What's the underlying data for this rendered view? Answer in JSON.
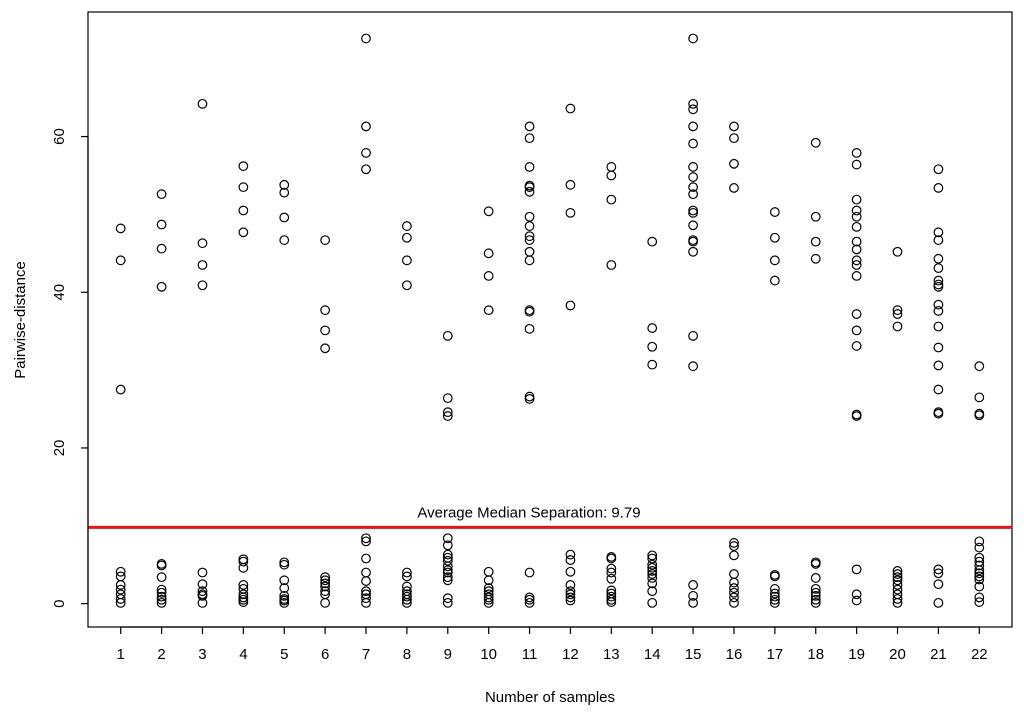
{
  "chart_data": {
    "type": "scatter",
    "xlabel": "Number of samples",
    "ylabel": "Pairwise-distance",
    "x_ticks": [
      1,
      2,
      3,
      4,
      5,
      6,
      7,
      8,
      9,
      10,
      11,
      12,
      13,
      14,
      15,
      16,
      17,
      18,
      19,
      20,
      21,
      22
    ],
    "y_ticks": [
      0,
      20,
      40,
      60
    ],
    "xlim": [
      0.2,
      22.8
    ],
    "ylim": [
      -3,
      76
    ],
    "grid": false,
    "reference_line": {
      "y": 9.79,
      "color": "#e8131b",
      "label": "Average Median Separation:  9.79"
    },
    "points": [
      [
        1,
        48.2
      ],
      [
        1,
        44.1
      ],
      [
        1,
        27.5
      ],
      [
        1,
        4.1
      ],
      [
        1,
        3.5
      ],
      [
        1,
        2.4
      ],
      [
        1,
        1.8
      ],
      [
        1,
        1.2
      ],
      [
        1,
        0.6
      ],
      [
        1,
        0.1
      ],
      [
        2,
        52.6
      ],
      [
        2,
        48.7
      ],
      [
        2,
        45.6
      ],
      [
        2,
        40.7
      ],
      [
        2,
        5.1
      ],
      [
        2,
        4.9
      ],
      [
        2,
        3.4
      ],
      [
        2,
        1.8
      ],
      [
        2,
        1.4
      ],
      [
        2,
        0.9
      ],
      [
        2,
        0.5
      ],
      [
        2,
        0.1
      ],
      [
        3,
        64.2
      ],
      [
        3,
        46.3
      ],
      [
        3,
        43.5
      ],
      [
        3,
        40.9
      ],
      [
        3,
        4.0
      ],
      [
        3,
        2.5
      ],
      [
        3,
        1.6
      ],
      [
        3,
        1.2
      ],
      [
        3,
        1.0
      ],
      [
        3,
        0.1
      ],
      [
        4,
        56.2
      ],
      [
        4,
        53.5
      ],
      [
        4,
        50.5
      ],
      [
        4,
        47.7
      ],
      [
        4,
        5.7
      ],
      [
        4,
        5.4
      ],
      [
        4,
        4.6
      ],
      [
        4,
        2.4
      ],
      [
        4,
        1.9
      ],
      [
        4,
        1.2
      ],
      [
        4,
        0.8
      ],
      [
        4,
        0.5
      ],
      [
        4,
        0.2
      ],
      [
        5,
        53.8
      ],
      [
        5,
        52.8
      ],
      [
        5,
        49.6
      ],
      [
        5,
        46.7
      ],
      [
        5,
        5.3
      ],
      [
        5,
        5.0
      ],
      [
        5,
        3.0
      ],
      [
        5,
        2.0
      ],
      [
        5,
        1.0
      ],
      [
        5,
        0.6
      ],
      [
        5,
        0.4
      ],
      [
        5,
        0.1
      ],
      [
        6,
        46.7
      ],
      [
        6,
        37.7
      ],
      [
        6,
        35.1
      ],
      [
        6,
        32.8
      ],
      [
        6,
        3.4
      ],
      [
        6,
        3.0
      ],
      [
        6,
        2.6
      ],
      [
        6,
        2.2
      ],
      [
        6,
        1.6
      ],
      [
        6,
        1.2
      ],
      [
        6,
        0.1
      ],
      [
        7,
        72.6
      ],
      [
        7,
        61.3
      ],
      [
        7,
        57.9
      ],
      [
        7,
        55.8
      ],
      [
        7,
        8.4
      ],
      [
        7,
        8.0
      ],
      [
        7,
        5.8
      ],
      [
        7,
        4.0
      ],
      [
        7,
        2.9
      ],
      [
        7,
        1.6
      ],
      [
        7,
        1.2
      ],
      [
        7,
        0.7
      ],
      [
        7,
        0.1
      ],
      [
        8,
        48.5
      ],
      [
        8,
        47.0
      ],
      [
        8,
        44.1
      ],
      [
        8,
        40.9
      ],
      [
        8,
        4.0
      ],
      [
        8,
        3.5
      ],
      [
        8,
        2.2
      ],
      [
        8,
        1.6
      ],
      [
        8,
        1.2
      ],
      [
        8,
        0.9
      ],
      [
        8,
        0.5
      ],
      [
        8,
        0.1
      ],
      [
        9,
        34.4
      ],
      [
        9,
        26.4
      ],
      [
        9,
        24.6
      ],
      [
        9,
        24.1
      ],
      [
        9,
        8.4
      ],
      [
        9,
        7.5
      ],
      [
        9,
        6.3
      ],
      [
        9,
        5.9
      ],
      [
        9,
        5.5
      ],
      [
        9,
        4.8
      ],
      [
        9,
        4.3
      ],
      [
        9,
        4.0
      ],
      [
        9,
        3.4
      ],
      [
        9,
        3.0
      ],
      [
        9,
        0.7
      ],
      [
        9,
        0.1
      ],
      [
        10,
        50.4
      ],
      [
        10,
        45.0
      ],
      [
        10,
        42.1
      ],
      [
        10,
        37.7
      ],
      [
        10,
        4.1
      ],
      [
        10,
        3.0
      ],
      [
        10,
        2.0
      ],
      [
        10,
        1.6
      ],
      [
        10,
        1.2
      ],
      [
        10,
        0.8
      ],
      [
        10,
        0.5
      ],
      [
        10,
        0.1
      ],
      [
        11,
        61.3
      ],
      [
        11,
        59.8
      ],
      [
        11,
        56.1
      ],
      [
        11,
        53.7
      ],
      [
        11,
        53.5
      ],
      [
        11,
        52.9
      ],
      [
        11,
        49.7
      ],
      [
        11,
        48.5
      ],
      [
        11,
        47.2
      ],
      [
        11,
        46.7
      ],
      [
        11,
        45.2
      ],
      [
        11,
        44.1
      ],
      [
        11,
        37.7
      ],
      [
        11,
        37.5
      ],
      [
        11,
        35.3
      ],
      [
        11,
        26.6
      ],
      [
        11,
        26.3
      ],
      [
        11,
        4.0
      ],
      [
        11,
        0.8
      ],
      [
        11,
        0.5
      ],
      [
        11,
        0.1
      ],
      [
        12,
        63.6
      ],
      [
        12,
        53.8
      ],
      [
        12,
        50.2
      ],
      [
        12,
        38.3
      ],
      [
        12,
        6.3
      ],
      [
        12,
        5.6
      ],
      [
        12,
        4.1
      ],
      [
        12,
        2.4
      ],
      [
        12,
        1.6
      ],
      [
        12,
        1.2
      ],
      [
        12,
        0.8
      ],
      [
        12,
        0.4
      ],
      [
        13,
        56.1
      ],
      [
        13,
        55.0
      ],
      [
        13,
        51.9
      ],
      [
        13,
        43.5
      ],
      [
        13,
        6.0
      ],
      [
        13,
        5.8
      ],
      [
        13,
        4.5
      ],
      [
        13,
        4.0
      ],
      [
        13,
        3.2
      ],
      [
        13,
        1.7
      ],
      [
        13,
        1.3
      ],
      [
        13,
        0.9
      ],
      [
        13,
        0.5
      ],
      [
        13,
        0.2
      ],
      [
        14,
        46.5
      ],
      [
        14,
        35.4
      ],
      [
        14,
        33.0
      ],
      [
        14,
        30.7
      ],
      [
        14,
        6.2
      ],
      [
        14,
        5.8
      ],
      [
        14,
        5.0
      ],
      [
        14,
        4.6
      ],
      [
        14,
        4.2
      ],
      [
        14,
        3.8
      ],
      [
        14,
        3.3
      ],
      [
        14,
        2.6
      ],
      [
        14,
        1.6
      ],
      [
        14,
        0.1
      ],
      [
        15,
        72.6
      ],
      [
        15,
        64.2
      ],
      [
        15,
        63.5
      ],
      [
        15,
        61.3
      ],
      [
        15,
        59.1
      ],
      [
        15,
        56.1
      ],
      [
        15,
        54.8
      ],
      [
        15,
        53.5
      ],
      [
        15,
        52.6
      ],
      [
        15,
        50.5
      ],
      [
        15,
        50.2
      ],
      [
        15,
        48.6
      ],
      [
        15,
        46.7
      ],
      [
        15,
        46.5
      ],
      [
        15,
        45.2
      ],
      [
        15,
        34.4
      ],
      [
        15,
        30.5
      ],
      [
        15,
        2.4
      ],
      [
        15,
        1.0
      ],
      [
        15,
        0.1
      ],
      [
        16,
        61.3
      ],
      [
        16,
        59.8
      ],
      [
        16,
        56.5
      ],
      [
        16,
        53.4
      ],
      [
        16,
        7.8
      ],
      [
        16,
        7.4
      ],
      [
        16,
        6.2
      ],
      [
        16,
        3.8
      ],
      [
        16,
        2.7
      ],
      [
        16,
        2.0
      ],
      [
        16,
        1.4
      ],
      [
        16,
        0.8
      ],
      [
        16,
        0.1
      ],
      [
        17,
        50.3
      ],
      [
        17,
        47.0
      ],
      [
        17,
        44.1
      ],
      [
        17,
        41.5
      ],
      [
        17,
        3.7
      ],
      [
        17,
        3.5
      ],
      [
        17,
        1.9
      ],
      [
        17,
        1.3
      ],
      [
        17,
        0.9
      ],
      [
        17,
        0.5
      ],
      [
        17,
        0.1
      ],
      [
        18,
        59.2
      ],
      [
        18,
        49.7
      ],
      [
        18,
        46.5
      ],
      [
        18,
        44.3
      ],
      [
        18,
        5.3
      ],
      [
        18,
        5.1
      ],
      [
        18,
        3.3
      ],
      [
        18,
        1.9
      ],
      [
        18,
        1.4
      ],
      [
        18,
        1.0
      ],
      [
        18,
        0.5
      ],
      [
        18,
        0.1
      ],
      [
        19,
        57.9
      ],
      [
        19,
        56.4
      ],
      [
        19,
        51.9
      ],
      [
        19,
        50.5
      ],
      [
        19,
        49.7
      ],
      [
        19,
        48.4
      ],
      [
        19,
        46.5
      ],
      [
        19,
        45.5
      ],
      [
        19,
        44.1
      ],
      [
        19,
        43.5
      ],
      [
        19,
        42.1
      ],
      [
        19,
        37.2
      ],
      [
        19,
        35.1
      ],
      [
        19,
        33.1
      ],
      [
        19,
        24.3
      ],
      [
        19,
        24.1
      ],
      [
        19,
        4.4
      ],
      [
        19,
        1.2
      ],
      [
        19,
        0.4
      ],
      [
        20,
        45.2
      ],
      [
        20,
        37.7
      ],
      [
        20,
        37.2
      ],
      [
        20,
        35.6
      ],
      [
        20,
        4.2
      ],
      [
        20,
        3.8
      ],
      [
        20,
        3.4
      ],
      [
        20,
        3.0
      ],
      [
        20,
        2.4
      ],
      [
        20,
        1.8
      ],
      [
        20,
        1.2
      ],
      [
        20,
        0.6
      ],
      [
        20,
        0.1
      ],
      [
        21,
        55.8
      ],
      [
        21,
        53.4
      ],
      [
        21,
        47.7
      ],
      [
        21,
        46.7
      ],
      [
        21,
        44.3
      ],
      [
        21,
        43.1
      ],
      [
        21,
        41.5
      ],
      [
        21,
        41.0
      ],
      [
        21,
        40.7
      ],
      [
        21,
        38.4
      ],
      [
        21,
        37.6
      ],
      [
        21,
        35.6
      ],
      [
        21,
        32.9
      ],
      [
        21,
        30.6
      ],
      [
        21,
        27.5
      ],
      [
        21,
        24.6
      ],
      [
        21,
        24.4
      ],
      [
        21,
        4.4
      ],
      [
        21,
        3.9
      ],
      [
        21,
        2.5
      ],
      [
        21,
        0.1
      ],
      [
        22,
        30.5
      ],
      [
        22,
        26.5
      ],
      [
        22,
        24.4
      ],
      [
        22,
        24.2
      ],
      [
        22,
        8.0
      ],
      [
        22,
        7.2
      ],
      [
        22,
        5.9
      ],
      [
        22,
        5.4
      ],
      [
        22,
        4.9
      ],
      [
        22,
        4.3
      ],
      [
        22,
        3.9
      ],
      [
        22,
        3.5
      ],
      [
        22,
        3.1
      ],
      [
        22,
        2.2
      ],
      [
        22,
        0.8
      ],
      [
        22,
        0.2
      ]
    ]
  }
}
